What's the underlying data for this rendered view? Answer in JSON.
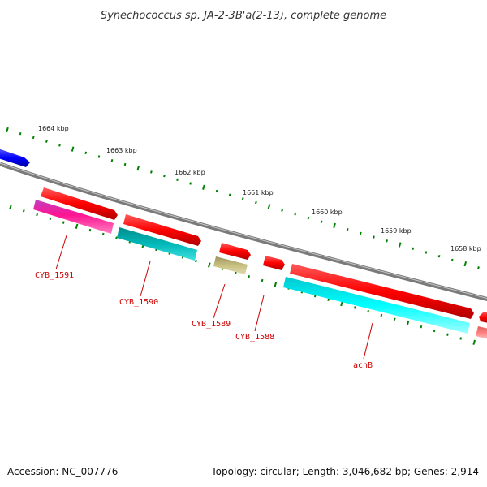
{
  "title": "Synechococcus sp. JA-2-3B'a(2-13), complete genome",
  "footer": {
    "accession": "Accession: NC_007776",
    "summary": "Topology: circular; Length: 3,046,682 bp; Genes: 2,914"
  },
  "colors": {
    "backbone": "#808080",
    "tick_green": "#008000",
    "label_red": "#cc0000",
    "gene_red": "#ff0000",
    "blue_feature": "#0000ff",
    "cds_magenta": "#ff1493",
    "cds_teal": "#00c0c0",
    "cds_khaki": "#c8c080",
    "cds_cyan": "#00ffff",
    "cds_pink": "#ff8080"
  },
  "ruler": {
    "labels": [
      "1664 kbp",
      "1663 kbp",
      "1662 kbp",
      "1661 kbp",
      "1660 kbp",
      "1659 kbp",
      "1658 kbp"
    ]
  },
  "gene_labels": [
    "CYB_1591",
    "CYB_1590",
    "CYB_1589",
    "CYB_1588",
    "acnB"
  ]
}
